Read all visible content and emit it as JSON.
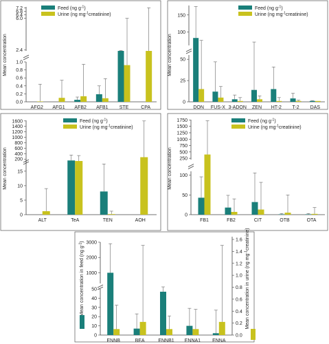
{
  "colors": {
    "feed": "#1a7f7a",
    "urine": "#c8c21e",
    "error": "#666666"
  },
  "chart_data": [
    {
      "type": "bar",
      "panel": "top-left",
      "ylabel": "Mean concentration",
      "legend": {
        "feed": "Feed (ng g",
        "feed_sup": "-1",
        "feed_end": ")",
        "urine": "Urine (ng mg",
        "urine_sup": "-1",
        "urine_end": "creatinine)"
      },
      "categories": [
        "AFG2",
        "AFG1",
        "AFB2",
        "AFB1",
        "STE",
        "CPA"
      ],
      "series": [
        {
          "name": "Feed",
          "values": [
            0,
            0,
            0.05,
            0.19,
            2.3,
            null
          ],
          "err": [
            0,
            0.02,
            0.12,
            0.4,
            2.35,
            null
          ]
        },
        {
          "name": "Urine",
          "values": [
            0.01,
            0.1,
            0.14,
            0.09,
            0.92,
            2.3
          ],
          "err": [
            0.44,
            0.54,
            0.94,
            0.58,
            6.0,
            7.2
          ]
        }
      ],
      "y_lower_ticks": [
        "0.0",
        "0.2",
        "0.4",
        "0.6",
        "0.8",
        "1.0"
      ],
      "y_upper_ticks": [
        "2.4",
        "6.0",
        "6.4",
        "6.8",
        "7.2"
      ]
    },
    {
      "type": "bar",
      "panel": "top-right",
      "ylabel": "Mean concentration",
      "legend": {
        "feed": "Feed (ng g",
        "feed_sup": "-1",
        "feed_end": ")",
        "urine": "Urine (ng mg",
        "urine_sup": "-1",
        "urine_end": "creatinine)"
      },
      "categories": [
        "DON",
        "FUS-X",
        "3-ADON",
        "ZEN",
        "HT-2",
        "T-2",
        "DAS"
      ],
      "series": [
        {
          "name": "Feed",
          "values": [
            82,
            12,
            3,
            14,
            15,
            4,
            1
          ],
          "err": [
            175,
            47,
            8,
            70,
            41,
            10,
            1.5
          ]
        },
        {
          "name": "Urine",
          "values": [
            15,
            5,
            1,
            3,
            1,
            1,
            1
          ],
          "err": [
            75,
            18,
            5,
            7,
            5,
            2,
            1
          ]
        }
      ],
      "y_lower_ticks": [
        "0",
        "25",
        "50"
      ],
      "y_upper_ticks": [
        "100",
        "150"
      ]
    },
    {
      "type": "bar",
      "panel": "middle-left",
      "ylabel": "Mean concentration",
      "legend": {
        "feed": "Feed (ng g",
        "feed_sup": "-1",
        "feed_end": ")",
        "urine": "Urine (ng mg",
        "urine_sup": "-1",
        "urine_end": "creatinine)"
      },
      "categories": [
        "ALT",
        "TeA",
        "TEN",
        "AOH"
      ],
      "series": [
        {
          "name": "Feed",
          "values": [
            0,
            150,
            8,
            null
          ],
          "err": [
            0,
            350,
            17.5,
            null
          ]
        },
        {
          "name": "Urine",
          "values": [
            1.2,
            130,
            0.2,
            270
          ],
          "err": [
            9,
            330,
            1.2,
            1600
          ]
        }
      ],
      "y_lower_ticks": [
        "0",
        "5",
        "10",
        "15"
      ],
      "y_upper_ticks": [
        "200",
        "400",
        "600",
        "800",
        "1000",
        "1200",
        "1400",
        "1600"
      ]
    },
    {
      "type": "bar",
      "panel": "middle-right",
      "ylabel": "Mean concentration",
      "legend": {
        "feed": "Feed (ng g",
        "feed_sup": "-1",
        "feed_end": ")",
        "urine": "Urine (ng mg",
        "urine_sup": "-1",
        "urine_end": "creatinine)"
      },
      "categories": [
        "FB1",
        "FB2",
        "CIT",
        "OTB",
        "OTA"
      ],
      "series": [
        {
          "name": "Feed",
          "values": [
            43,
            18,
            32,
            1,
            1
          ],
          "err": [
            96,
            49,
            106,
            3,
            3
          ]
        },
        {
          "name": "Urine",
          "values": [
            400,
            7,
            13,
            5,
            2
          ],
          "err": [
            1720,
            40,
            82,
            50,
            18
          ]
        }
      ],
      "y_lower_ticks": [
        "0",
        "50",
        "100"
      ],
      "y_upper_ticks": [
        "250",
        "500",
        "750",
        "1000",
        "1250",
        "1500",
        "1750"
      ]
    },
    {
      "type": "bar",
      "panel": "bottom",
      "ylabel_left": "Mean concentration in feed (ng g",
      "ylabel_left_sup": "-1",
      "ylabel_left_end": ")",
      "ylabel_right": "Mean concentration in urine (ng mg",
      "ylabel_right_sup": "-1",
      "ylabel_right_end": "creatinine)",
      "categories": [
        "ENNB",
        "BEA",
        "ENNB1",
        "ENNA1",
        "ENNA"
      ],
      "series": [
        {
          "name": "Feed",
          "values": [
            1000,
            7,
            47,
            10,
            2
          ],
          "err": [
            2900,
            23,
            57,
            29,
            27
          ]
        },
        {
          "name": "Urine",
          "values": [
            0.1,
            0.22,
            0.1,
            0.1,
            0.22
          ],
          "err": [
            0.5,
            1.5,
            0.32,
            0.43,
            1.5
          ]
        }
      ],
      "y_left_lower_ticks": [
        "0",
        "10",
        "20",
        "30",
        "40",
        "50"
      ],
      "y_left_upper_ticks": [
        "1000",
        "2000",
        "3000"
      ],
      "y_right_ticks": [
        "0.0",
        "0.2",
        "0.4",
        "0.6",
        "0.8",
        "1.0",
        "1.2",
        "1.4",
        "1.6"
      ]
    }
  ]
}
